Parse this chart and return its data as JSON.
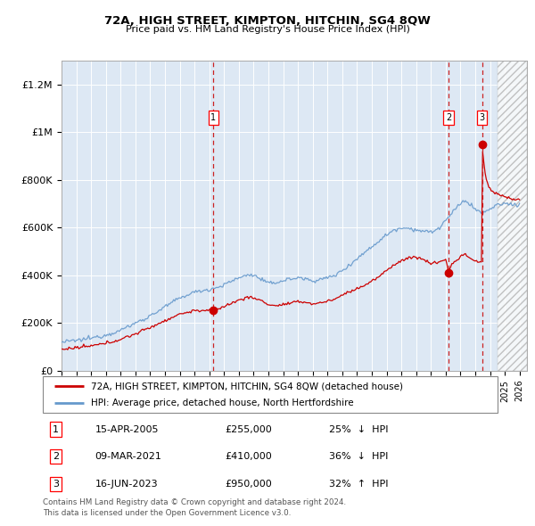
{
  "title": "72A, HIGH STREET, KIMPTON, HITCHIN, SG4 8QW",
  "subtitle": "Price paid vs. HM Land Registry's House Price Index (HPI)",
  "legend_line1": "72A, HIGH STREET, KIMPTON, HITCHIN, SG4 8QW (detached house)",
  "legend_line2": "HPI: Average price, detached house, North Hertfordshire",
  "transactions": [
    {
      "num": 1,
      "date": "15-APR-2005",
      "price": 255000,
      "pct": "25%",
      "dir": "↓",
      "x_year": 2005.28
    },
    {
      "num": 2,
      "date": "09-MAR-2021",
      "price": 410000,
      "pct": "36%",
      "dir": "↓",
      "x_year": 2021.19
    },
    {
      "num": 3,
      "date": "16-JUN-2023",
      "price": 950000,
      "pct": "32%",
      "dir": "↑",
      "x_year": 2023.46
    }
  ],
  "footnote1": "Contains HM Land Registry data © Crown copyright and database right 2024.",
  "footnote2": "This data is licensed under the Open Government Licence v3.0.",
  "ylim_max": 1300000,
  "xlim_start": 1995.0,
  "xlim_end": 2026.5,
  "hatch_start": 2024.5,
  "plot_bg": "#dde8f4",
  "hatch_bg": "#e8e8e8",
  "red_line_color": "#cc0000",
  "blue_line_color": "#6699cc",
  "dashed_vline_color": "#cc2222",
  "grid_color": "#ffffff",
  "yticks": [
    0,
    200000,
    400000,
    600000,
    800000,
    1000000,
    1200000
  ],
  "ylabels": [
    "£0",
    "£200K",
    "£400K",
    "£600K",
    "£800K",
    "£1M",
    "£1.2M"
  ]
}
